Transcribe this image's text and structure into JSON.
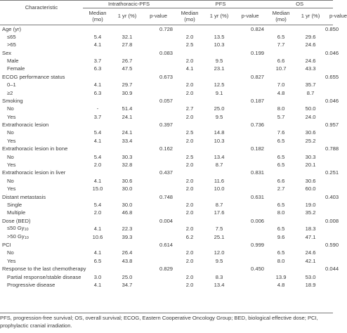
{
  "header": {
    "characteristic": "Characteristic",
    "groups": [
      "Intrathoracic-PFS",
      "PFS",
      "OS"
    ],
    "median_line1": "Median",
    "median_line2": "(mo)",
    "one_yr": "1 yr (%)",
    "pvalue": "p-value"
  },
  "rows": [
    {
      "label": "Age (yr)",
      "level": 0,
      "ipfs": [
        "",
        "",
        "0.728"
      ],
      "pfs": [
        "",
        "",
        "0.824"
      ],
      "os": [
        "",
        "",
        "0.850"
      ]
    },
    {
      "label": "≤65",
      "level": 1,
      "ipfs": [
        "5.4",
        "32.1",
        ""
      ],
      "pfs": [
        "2.0",
        "13.5",
        ""
      ],
      "os": [
        "6.5",
        "29.6",
        ""
      ]
    },
    {
      "label": ">65",
      "level": 1,
      "ipfs": [
        "4.1",
        "27.8",
        ""
      ],
      "pfs": [
        "2.5",
        "10.3",
        ""
      ],
      "os": [
        "7.7",
        "24.6",
        ""
      ]
    },
    {
      "label": "Sex",
      "level": 0,
      "ipfs": [
        "",
        "",
        "0.083"
      ],
      "pfs": [
        "",
        "",
        "0.199"
      ],
      "os": [
        "",
        "",
        "0.046"
      ]
    },
    {
      "label": "Male",
      "level": 1,
      "ipfs": [
        "3.7",
        "26.7",
        ""
      ],
      "pfs": [
        "2.0",
        "9.5",
        ""
      ],
      "os": [
        "6.6",
        "24.6",
        ""
      ]
    },
    {
      "label": "Female",
      "level": 1,
      "ipfs": [
        "6.3",
        "47.5",
        ""
      ],
      "pfs": [
        "4.1",
        "23.1",
        ""
      ],
      "os": [
        "10.7",
        "43.3",
        ""
      ]
    },
    {
      "label": "ECOG performance status",
      "level": 0,
      "ipfs": [
        "",
        "",
        "0.673"
      ],
      "pfs": [
        "",
        "",
        "0.827"
      ],
      "os": [
        "",
        "",
        "0.655"
      ]
    },
    {
      "label": "0–1",
      "level": 1,
      "ipfs": [
        "4.1",
        "29.7",
        ""
      ],
      "pfs": [
        "2.0",
        "12.5",
        ""
      ],
      "os": [
        "7.0",
        "35.7",
        ""
      ]
    },
    {
      "label": "≥2",
      "level": 1,
      "ipfs": [
        "6.3",
        "30.9",
        ""
      ],
      "pfs": [
        "2.0",
        "9.1",
        ""
      ],
      "os": [
        "4.8",
        "8.7",
        ""
      ]
    },
    {
      "label": "Smoking",
      "level": 0,
      "ipfs": [
        "",
        "",
        "0.057"
      ],
      "pfs": [
        "",
        "",
        "0.187"
      ],
      "os": [
        "",
        "",
        "0.046"
      ]
    },
    {
      "label": "No",
      "level": 1,
      "ipfs": [
        "-",
        "51.4",
        ""
      ],
      "pfs": [
        "2.7",
        "25.0",
        ""
      ],
      "os": [
        "8.0",
        "50.0",
        ""
      ]
    },
    {
      "label": "Yes",
      "level": 1,
      "ipfs": [
        "3.7",
        "24.1",
        ""
      ],
      "pfs": [
        "2.0",
        "9.5",
        ""
      ],
      "os": [
        "5.7",
        "24.0",
        ""
      ]
    },
    {
      "label": "Extrathoracic lesion",
      "level": 0,
      "ipfs": [
        "",
        "",
        "0.397"
      ],
      "pfs": [
        "",
        "",
        "0.736"
      ],
      "os": [
        "",
        "",
        "0.957"
      ]
    },
    {
      "label": "No",
      "level": 1,
      "ipfs": [
        "5.4",
        "24.1",
        ""
      ],
      "pfs": [
        "2.5",
        "14.8",
        ""
      ],
      "os": [
        "7.6",
        "30.6",
        ""
      ]
    },
    {
      "label": "Yes",
      "level": 1,
      "ipfs": [
        "4.1",
        "33.4",
        ""
      ],
      "pfs": [
        "2.0",
        "10.3",
        ""
      ],
      "os": [
        "6.5",
        "25.2",
        ""
      ]
    },
    {
      "label": "Extrathoracic lesion in bone",
      "level": 0,
      "ipfs": [
        "",
        "",
        "0.162"
      ],
      "pfs": [
        "",
        "",
        "0.182"
      ],
      "os": [
        "",
        "",
        "0.788"
      ]
    },
    {
      "label": "No",
      "level": 1,
      "ipfs": [
        "5.4",
        "30.3",
        ""
      ],
      "pfs": [
        "2.5",
        "13.4",
        ""
      ],
      "os": [
        "6.5",
        "30.3",
        ""
      ]
    },
    {
      "label": "Yes",
      "level": 1,
      "ipfs": [
        "2.0",
        "32.8",
        ""
      ],
      "pfs": [
        "2.0",
        "8.7",
        ""
      ],
      "os": [
        "6.5",
        "20.1",
        ""
      ]
    },
    {
      "label": "Extrathoracic lesion in liver",
      "level": 0,
      "ipfs": [
        "",
        "",
        "0.437"
      ],
      "pfs": [
        "",
        "",
        "0.831"
      ],
      "os": [
        "",
        "",
        "0.251"
      ]
    },
    {
      "label": "No",
      "level": 1,
      "ipfs": [
        "4.1",
        "30.6",
        ""
      ],
      "pfs": [
        "2.0",
        "11.6",
        ""
      ],
      "os": [
        "6.6",
        "30.6",
        ""
      ]
    },
    {
      "label": "Yes",
      "level": 1,
      "ipfs": [
        "15.0",
        "30.0",
        ""
      ],
      "pfs": [
        "2.0",
        "10.0",
        ""
      ],
      "os": [
        "2.7",
        "60.0",
        ""
      ]
    },
    {
      "label": "Distant metastasis",
      "level": 0,
      "ipfs": [
        "",
        "",
        "0.748"
      ],
      "pfs": [
        "",
        "",
        "0.631"
      ],
      "os": [
        "",
        "",
        "0.403"
      ]
    },
    {
      "label": "Single",
      "level": 1,
      "ipfs": [
        "5.4",
        "30.0",
        ""
      ],
      "pfs": [
        "2.0",
        "8.7",
        ""
      ],
      "os": [
        "6.5",
        "19.0",
        ""
      ]
    },
    {
      "label": "Multiple",
      "level": 1,
      "ipfs": [
        "2.0",
        "46.8",
        ""
      ],
      "pfs": [
        "2.0",
        "17.6",
        ""
      ],
      "os": [
        "8.0",
        "35.2",
        ""
      ]
    },
    {
      "label": "Dose (BED)",
      "level": 0,
      "ipfs": [
        "",
        "",
        "0.004"
      ],
      "pfs": [
        "",
        "",
        "0.006"
      ],
      "os": [
        "",
        "",
        "0.008"
      ]
    },
    {
      "label": "≤50 Gy",
      "sub": "10",
      "level": 1,
      "ipfs": [
        "4.1",
        "22.3",
        ""
      ],
      "pfs": [
        "2.0",
        "7.5",
        ""
      ],
      "os": [
        "6.5",
        "18.3",
        ""
      ]
    },
    {
      "label": ">50 Gy",
      "sub": "10",
      "level": 1,
      "ipfs": [
        "10.6",
        "39.3",
        ""
      ],
      "pfs": [
        "6.2",
        "25.1",
        ""
      ],
      "os": [
        "9.6",
        "47.1",
        ""
      ]
    },
    {
      "label": "PCI",
      "level": 0,
      "ipfs": [
        "",
        "",
        "0.614"
      ],
      "pfs": [
        "",
        "",
        "0.999"
      ],
      "os": [
        "",
        "",
        "0.590"
      ]
    },
    {
      "label": "No",
      "level": 1,
      "ipfs": [
        "4.1",
        "26.4",
        ""
      ],
      "pfs": [
        "2.0",
        "12.0",
        ""
      ],
      "os": [
        "6.5",
        "24.6",
        ""
      ]
    },
    {
      "label": "Yes",
      "level": 1,
      "ipfs": [
        "6.5",
        "43.8",
        ""
      ],
      "pfs": [
        "2.0",
        "9.5",
        ""
      ],
      "os": [
        "8.0",
        "42.1",
        ""
      ]
    },
    {
      "label": "Response to the last chemotherapy",
      "level": 0,
      "ipfs": [
        "",
        "",
        "0.829"
      ],
      "pfs": [
        "",
        "",
        "0.450"
      ],
      "os": [
        "",
        "",
        "0.044"
      ]
    },
    {
      "label": "Partial response/stable disease",
      "level": 1,
      "ipfs": [
        "3.0",
        "25.0",
        ""
      ],
      "pfs": [
        "2.0",
        "8.3",
        ""
      ],
      "os": [
        "13.9",
        "53.0",
        ""
      ]
    },
    {
      "label": "Progressive disease",
      "level": 1,
      "ipfs": [
        "4.1",
        "34.7",
        ""
      ],
      "pfs": [
        "2.0",
        "13.4",
        ""
      ],
      "os": [
        "4.8",
        "18.9",
        ""
      ]
    }
  ],
  "footnote": "PFS, progression-free survival; OS, overall survival; ECOG, Eastern Cooperative Oncology Group; BED, biological effective dose; PCI, prophylactic cranial irradiation."
}
